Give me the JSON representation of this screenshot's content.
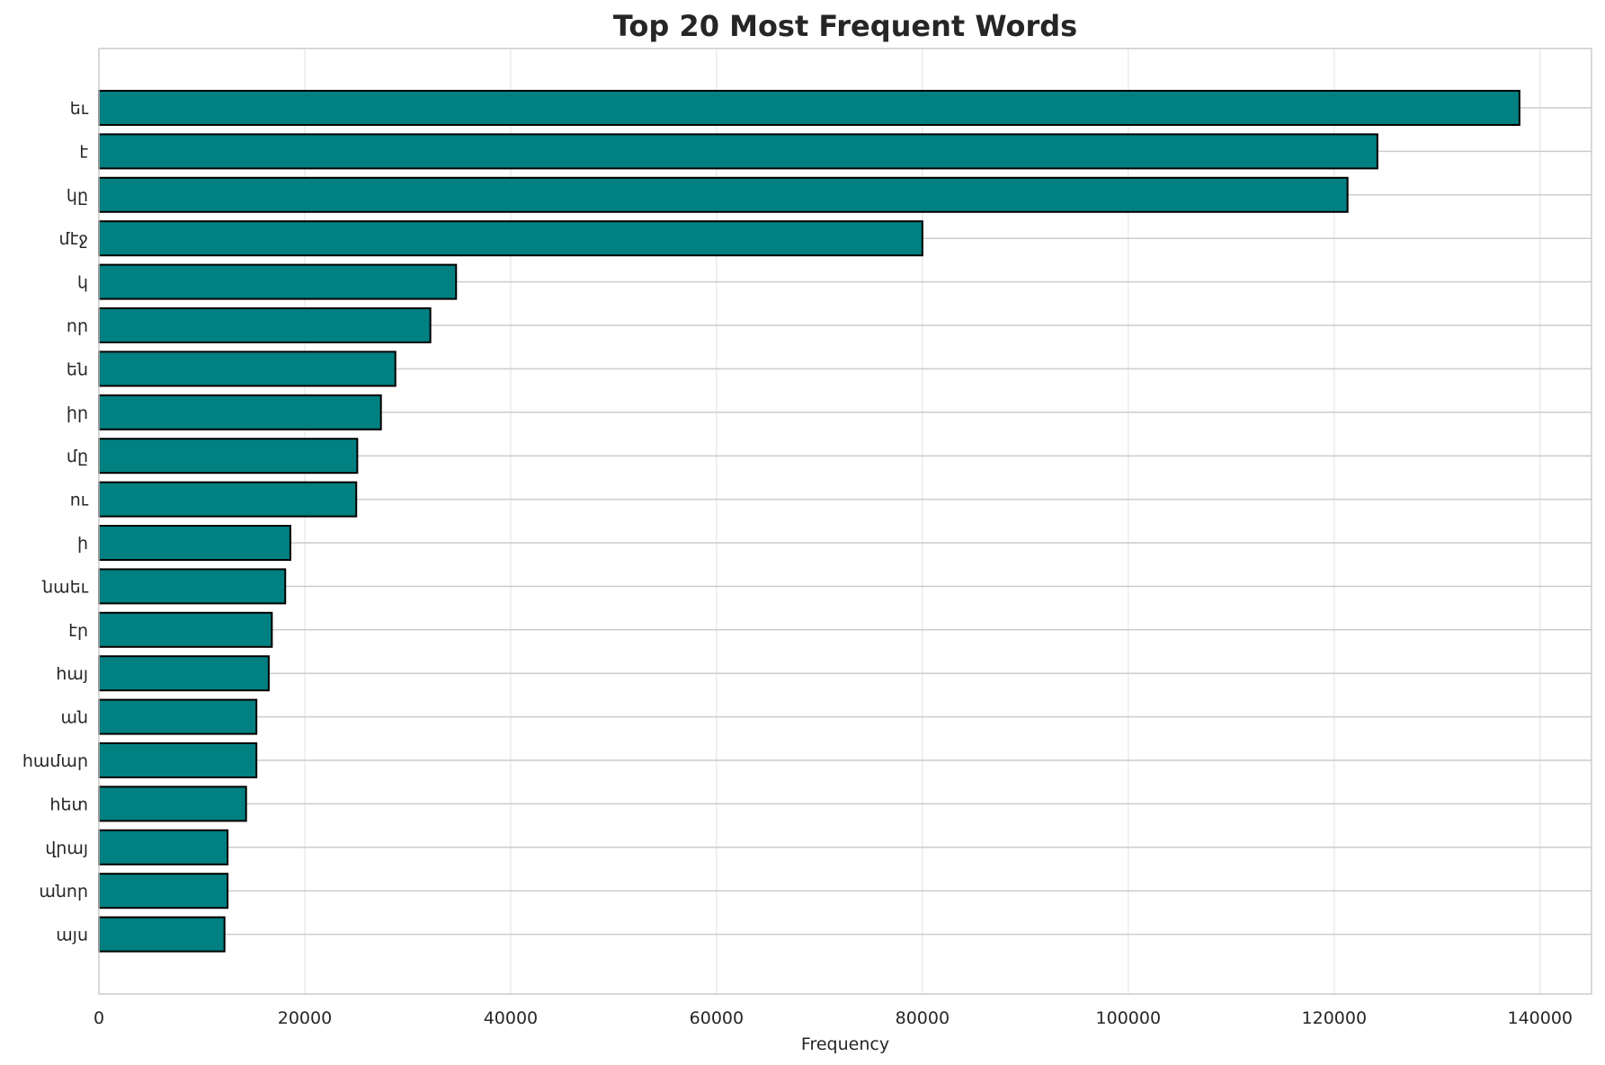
{
  "chart_data": {
    "type": "bar",
    "orientation": "horizontal",
    "title": "Top 20 Most Frequent Words",
    "xlabel": "Frequency",
    "ylabel": "",
    "xlim": [
      0,
      145000
    ],
    "x_ticks": [
      0,
      20000,
      40000,
      60000,
      80000,
      100000,
      120000,
      140000
    ],
    "x_tick_labels": [
      "0",
      "20000",
      "40000",
      "60000",
      "80000",
      "100000",
      "120000",
      "140000"
    ],
    "grid": true,
    "legend": "none",
    "bar_color": "#008080",
    "bar_edge_color": "#000000",
    "categories": [
      "եւ",
      "է",
      "կը",
      "մէջ",
      "կ",
      "որ",
      "են",
      "իր",
      "մը",
      "ու",
      "ի",
      "նաեւ",
      "էր",
      "հայ",
      "ան",
      "համար",
      "հետ",
      "վրայ",
      "անոր",
      "այս"
    ],
    "values": [
      138000,
      124200,
      121300,
      80000,
      34700,
      32200,
      28800,
      27400,
      25100,
      25000,
      18600,
      18100,
      16800,
      16500,
      15300,
      15300,
      14300,
      12500,
      12500,
      12200
    ]
  }
}
